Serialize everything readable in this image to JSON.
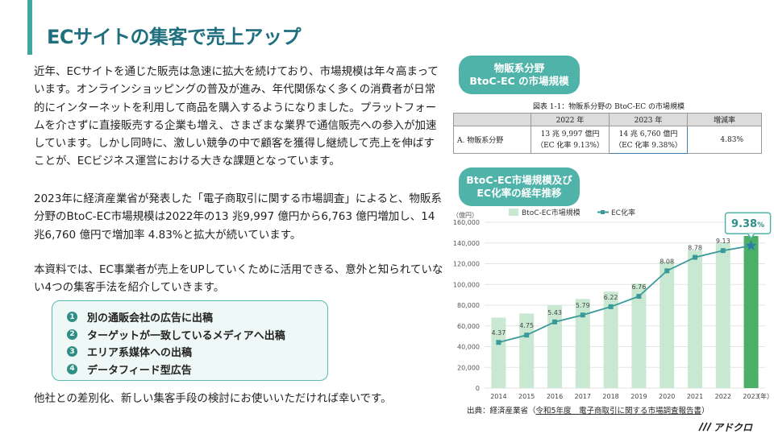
{
  "title": "ECサイトの集客で売上アップ",
  "paragraphs": [
    "近年、ECサイトを通じた販売は急速に拡大を続けており、市場規模は年々高まっています。オンラインショッピングの普及が進み、年代関係なく多くの消費者が日常的にインターネットを利用して商品を購入するようになりました。プラットフォームを介さずに直接販売する企業も増え、さまざまな業界で通信販売への参入が加速しています。しかし同時に、激しい競争の中で顧客を獲得し継続して売上を伸ばすことが、ECビジネス運営における大きな課題となっています。",
    "2023年に経済産業省が発表した「電子商取引に関する市場調査」によると、物販系分野のBtoC-EC市場規模は2022年の13 兆9,997 億円から6,763 億円増加し、14 兆6,760 億円で増加率 4.83%と拡大が続いています。",
    "本資料では、EC事業者が売上をUPしていくために活用できる、意外と知られていない4つの集客手法を紹介していきます。"
  ],
  "methods": [
    {
      "num": "1",
      "label": "別の通販会社の広告に出稿"
    },
    {
      "num": "2",
      "label": "ターゲットが一致しているメディアへ出稿"
    },
    {
      "num": "3",
      "label": "エリア系媒体への出稿"
    },
    {
      "num": "4",
      "label": "データフィード型広告"
    }
  ],
  "closing": "他社との差別化、新しい集客手段の検討にお使いいただければ幸いです。",
  "pill1": {
    "line1": "物販系分野",
    "line2": "BtoC-EC の市場規模"
  },
  "pill2": {
    "line1": "BtoC-EC市場規模及び",
    "line2": "EC化率の経年推移"
  },
  "table": {
    "caption": "図表 1-1：物販系分野の BtoC-EC の市場規模",
    "headers": [
      "",
      "2022 年",
      "2023 年",
      "増減率"
    ],
    "row": {
      "category": "A. 物販系分野",
      "y2022_amount": "13 兆 9,997 億円",
      "y2022_rate": "（EC 化率 9.13%）",
      "y2023_amount": "14 兆 6,760 億円",
      "y2023_rate": "（EC 化率 9.38%）",
      "change": "4.83%"
    }
  },
  "chart_data": {
    "type": "bar",
    "ylabel": "（億円）",
    "xlabel": "（年）",
    "ylim": [
      0,
      160000
    ],
    "yticks": [
      "0",
      "20,000",
      "40,000",
      "60,000",
      "80,000",
      "100,000",
      "120,000",
      "140,000",
      "160,000"
    ],
    "categories": [
      "2014",
      "2015",
      "2016",
      "2017",
      "2018",
      "2019",
      "2020",
      "2021",
      "2022",
      "2023"
    ],
    "series": [
      {
        "name": "BtoC-EC市場規模",
        "values": [
          68000,
          72000,
          80000,
          86000,
          93000,
          101000,
          122000,
          133000,
          140000,
          146760
        ]
      },
      {
        "name": "EC化率",
        "values": [
          4.37,
          4.75,
          5.43,
          5.79,
          6.22,
          6.76,
          8.08,
          8.78,
          9.13,
          9.38
        ]
      }
    ],
    "rate_labels": [
      "4.37",
      "4.75",
      "5.43",
      "5.79",
      "6.22",
      "6.76",
      "8.08",
      "8.78",
      "9.13",
      ""
    ],
    "callout": {
      "value": "9.38",
      "unit": "%"
    },
    "legend": "top",
    "colors": {
      "bar": "#c9e8d2",
      "bar_highlight": "#4caf68",
      "line": "#3a9a99"
    },
    "source_prefix": "出典：経済産業省（",
    "source_link": "令和5年度　電子商取引に関する市場調査報告書",
    "source_suffix": "）"
  },
  "logo": "アドクロ"
}
